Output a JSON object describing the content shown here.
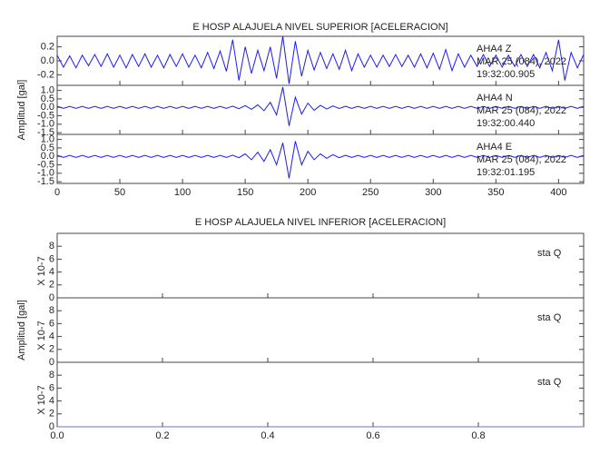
{
  "chart_data": [
    {
      "type": "line",
      "title": "E HOSP ALAJUELA NIVEL SUPERIOR [ACELERACION]",
      "ylabel": "Amplitud [gal]",
      "xlim": [
        0,
        420
      ],
      "xticks": [
        0,
        50,
        100,
        150,
        200,
        250,
        300,
        350,
        400
      ],
      "x": [
        0,
        5,
        10,
        15,
        20,
        25,
        30,
        35,
        40,
        45,
        50,
        55,
        60,
        65,
        70,
        75,
        80,
        85,
        90,
        95,
        100,
        105,
        110,
        115,
        120,
        125,
        130,
        135,
        140,
        145,
        150,
        155,
        160,
        165,
        170,
        175,
        180,
        185,
        190,
        195,
        200,
        205,
        210,
        215,
        220,
        225,
        230,
        235,
        240,
        245,
        250,
        255,
        260,
        265,
        270,
        275,
        280,
        285,
        290,
        295,
        300,
        305,
        310,
        315,
        320,
        325,
        330,
        335,
        340,
        345,
        350,
        355,
        360,
        365,
        370,
        375,
        380,
        385,
        390,
        395,
        400,
        405,
        410,
        415,
        420
      ],
      "panels": [
        {
          "ylim": [
            -0.35,
            0.35
          ],
          "yticks": [
            0.2,
            {
              "value": 0,
              "label": "0.0"
            },
            -0.2
          ],
          "annotation": [
            "AHA4 Z",
            "MAR 25 (084), 2022",
            "19:32:00.905"
          ],
          "series": [
            {
              "color": "#1a1aff",
              "values": [
                0.08,
                -0.09,
                0.07,
                -0.1,
                0.08,
                -0.07,
                0.09,
                -0.08,
                0.1,
                -0.09,
                0.08,
                -0.1,
                0.09,
                -0.08,
                0.1,
                -0.09,
                0.08,
                -0.1,
                0.09,
                -0.08,
                0.1,
                -0.09,
                0.08,
                -0.1,
                0.12,
                -0.11,
                0.14,
                -0.15,
                0.3,
                -0.28,
                0.2,
                -0.18,
                0.15,
                -0.14,
                0.2,
                -0.25,
                0.35,
                -0.33,
                0.28,
                -0.22,
                0.15,
                -0.13,
                0.12,
                -0.11,
                0.1,
                -0.12,
                0.15,
                -0.14,
                0.1,
                -0.09,
                0.08,
                -0.09,
                0.08,
                -0.08,
                0.09,
                -0.08,
                0.08,
                -0.09,
                0.1,
                -0.1,
                0.11,
                -0.12,
                0.16,
                -0.14,
                0.1,
                -0.09,
                0.08,
                -0.08,
                0.09,
                -0.08,
                0.08,
                -0.09,
                0.08,
                -0.08,
                0.09,
                -0.08,
                0.09,
                -0.1,
                0.12,
                -0.14,
                0.3,
                -0.28,
                0.12,
                -0.1,
                0.09
              ]
            }
          ]
        },
        {
          "ylim": [
            -1.6,
            1.3
          ],
          "yticks": [
            {
              "value": 1,
              "label": "1.0"
            },
            0.5,
            {
              "value": 0,
              "label": "0.0"
            },
            -0.5,
            {
              "value": -1,
              "label": "-1.0"
            },
            -1.5
          ],
          "annotation": [
            "AHA4 N",
            "MAR 25 (084), 2022",
            "19:32:00.440"
          ],
          "series": [
            {
              "color": "#1a1aff",
              "values": [
                0.06,
                -0.06,
                0.06,
                -0.06,
                0.06,
                -0.06,
                0.06,
                -0.06,
                0.06,
                -0.06,
                0.06,
                -0.06,
                0.06,
                -0.06,
                0.06,
                -0.06,
                0.06,
                -0.06,
                0.06,
                -0.06,
                0.06,
                -0.06,
                0.06,
                -0.06,
                0.06,
                -0.06,
                0.06,
                -0.06,
                0.07,
                -0.08,
                0.1,
                -0.12,
                0.15,
                -0.2,
                0.3,
                -0.45,
                1.2,
                -1.1,
                0.6,
                -0.4,
                0.25,
                -0.18,
                0.12,
                -0.1,
                0.08,
                -0.07,
                0.06,
                -0.06,
                0.06,
                -0.06,
                0.06,
                -0.06,
                0.06,
                -0.06,
                0.06,
                -0.06,
                0.06,
                -0.06,
                0.06,
                -0.06,
                0.06,
                -0.06,
                0.06,
                -0.06,
                0.06,
                -0.06,
                0.06,
                -0.06,
                0.06,
                -0.06,
                0.06,
                -0.06,
                0.06,
                -0.06,
                0.06,
                -0.06,
                0.06,
                -0.06,
                0.06,
                -0.06,
                0.06,
                -0.06,
                0.06,
                -0.06,
                0.06
              ]
            }
          ]
        },
        {
          "ylim": [
            -1.6,
            1.3
          ],
          "yticks": [
            {
              "value": 1,
              "label": "1.0"
            },
            0.5,
            {
              "value": 0,
              "label": "0.0"
            },
            -0.5,
            {
              "value": -1,
              "label": "-1.0"
            },
            -1.5
          ],
          "annotation": [
            "AHA4 E",
            "MAR 25 (084), 2022",
            "19:32:01.195"
          ],
          "series": [
            {
              "color": "#1a1aff",
              "values": [
                0.06,
                -0.06,
                0.06,
                -0.06,
                0.06,
                -0.06,
                0.06,
                -0.06,
                0.06,
                -0.06,
                0.06,
                -0.06,
                0.06,
                -0.06,
                0.06,
                -0.06,
                0.06,
                -0.06,
                0.06,
                -0.06,
                0.06,
                -0.06,
                0.06,
                -0.06,
                0.06,
                -0.06,
                0.06,
                -0.06,
                0.07,
                -0.08,
                0.15,
                -0.2,
                0.25,
                -0.3,
                0.4,
                -0.5,
                0.8,
                -1.3,
                0.9,
                -0.5,
                0.3,
                -0.2,
                0.15,
                -0.12,
                0.1,
                -0.08,
                0.06,
                -0.06,
                0.06,
                -0.06,
                0.06,
                -0.06,
                0.06,
                -0.06,
                0.06,
                -0.06,
                0.06,
                -0.06,
                0.06,
                -0.06,
                0.06,
                -0.06,
                0.06,
                -0.06,
                0.06,
                -0.06,
                0.06,
                -0.06,
                0.06,
                -0.06,
                0.06,
                -0.06,
                0.06,
                -0.06,
                0.06,
                -0.06,
                0.06,
                -0.06,
                0.06,
                -0.06,
                0.06,
                -0.06,
                0.06,
                -0.06,
                0.06
              ]
            }
          ]
        }
      ]
    },
    {
      "type": "line",
      "title": "E HOSP ALAJUELA NIVEL INFERIOR [ACELERACION]",
      "ylabel": "Amplitud [gal]",
      "xlim": [
        0,
        1
      ],
      "xticks": [
        {
          "value": 0,
          "label": "0.0"
        },
        0.2,
        0.4,
        0.6,
        0.8
      ],
      "x": [
        0,
        1
      ],
      "panels": [
        {
          "ylim": [
            0,
            10
          ],
          "yticks": [
            0,
            2,
            4,
            6,
            8
          ],
          "multiplier": "X 10-7",
          "annotation": [
            "sta Q"
          ],
          "series": [
            {
              "color": "#6a6aff",
              "values": [
                0,
                0
              ]
            }
          ]
        },
        {
          "ylim": [
            0,
            10
          ],
          "yticks": [
            0,
            2,
            4,
            6,
            8
          ],
          "multiplier": "X 10-7",
          "annotation": [
            "sta Q"
          ],
          "series": [
            {
              "color": "#6a6aff",
              "values": [
                0,
                0
              ]
            }
          ]
        },
        {
          "ylim": [
            0,
            10
          ],
          "yticks": [
            0,
            2,
            4,
            6,
            8
          ],
          "multiplier": "X 10-7",
          "annotation": [
            "sta Q"
          ],
          "series": [
            {
              "color": "#6a6aff",
              "values": [
                0,
                0
              ]
            }
          ]
        }
      ]
    }
  ]
}
